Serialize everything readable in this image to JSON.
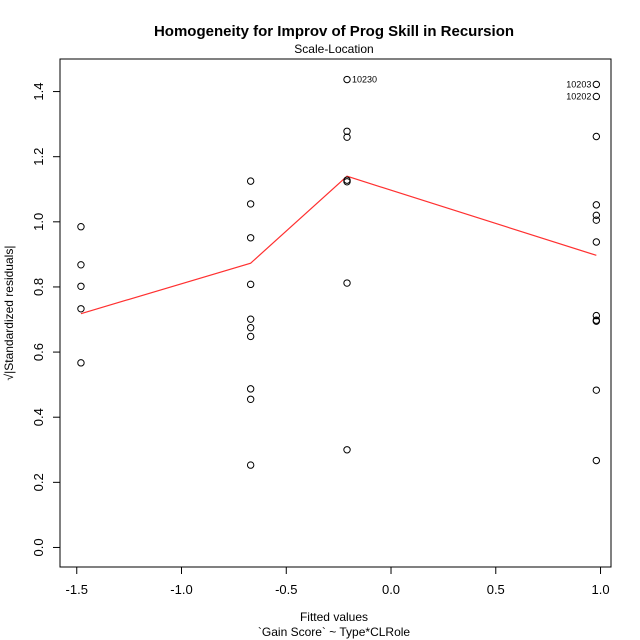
{
  "chart_data": {
    "type": "scatter",
    "title": "Homogeneity for Improv of Prog Skill in Recursion",
    "subtitle": "Scale-Location",
    "xlabel": "Fitted values",
    "xlabel2": "`Gain Score` ~ Type*CLRole",
    "ylabel": "√|Standardized residuals|",
    "xlim": [
      -1.58,
      1.05
    ],
    "ylim": [
      -0.06,
      1.5
    ],
    "xticks": [
      -1.5,
      -1.0,
      -0.5,
      0.0,
      0.5,
      1.0
    ],
    "xtick_labels": [
      "-1.5",
      "-1.0",
      "-0.5",
      "0.0",
      "0.5",
      "1.0"
    ],
    "yticks": [
      0.0,
      0.2,
      0.4,
      0.6,
      0.8,
      1.0,
      1.2,
      1.4
    ],
    "ytick_labels": [
      "0.0",
      "0.2",
      "0.4",
      "0.6",
      "0.8",
      "1.0",
      "1.2",
      "1.4"
    ],
    "grid": false,
    "points": [
      {
        "x": -1.48,
        "y": 0.985
      },
      {
        "x": -1.48,
        "y": 0.868
      },
      {
        "x": -1.48,
        "y": 0.802
      },
      {
        "x": -1.48,
        "y": 0.733
      },
      {
        "x": -1.48,
        "y": 0.567
      },
      {
        "x": -0.67,
        "y": 1.125
      },
      {
        "x": -0.67,
        "y": 1.055
      },
      {
        "x": -0.67,
        "y": 0.951
      },
      {
        "x": -0.67,
        "y": 0.808
      },
      {
        "x": -0.67,
        "y": 0.701
      },
      {
        "x": -0.67,
        "y": 0.675
      },
      {
        "x": -0.67,
        "y": 0.648
      },
      {
        "x": -0.67,
        "y": 0.487
      },
      {
        "x": -0.67,
        "y": 0.455
      },
      {
        "x": -0.67,
        "y": 0.253
      },
      {
        "x": -0.21,
        "y": 1.437,
        "label": "10230"
      },
      {
        "x": -0.21,
        "y": 1.278
      },
      {
        "x": -0.21,
        "y": 1.26
      },
      {
        "x": -0.21,
        "y": 1.128
      },
      {
        "x": -0.21,
        "y": 1.123
      },
      {
        "x": -0.21,
        "y": 0.812
      },
      {
        "x": -0.21,
        "y": 0.3
      },
      {
        "x": 0.98,
        "y": 1.422,
        "label": "10203"
      },
      {
        "x": 0.98,
        "y": 1.385,
        "label": "10202"
      },
      {
        "x": 0.98,
        "y": 1.262
      },
      {
        "x": 0.98,
        "y": 1.052
      },
      {
        "x": 0.98,
        "y": 1.02
      },
      {
        "x": 0.98,
        "y": 1.005
      },
      {
        "x": 0.98,
        "y": 0.938
      },
      {
        "x": 0.98,
        "y": 0.712
      },
      {
        "x": 0.98,
        "y": 0.698
      },
      {
        "x": 0.98,
        "y": 0.695
      },
      {
        "x": 0.98,
        "y": 0.483
      },
      {
        "x": 0.98,
        "y": 0.267
      }
    ],
    "smoother": {
      "x": [
        -1.48,
        -0.67,
        -0.21,
        0.98
      ],
      "y": [
        0.718,
        0.873,
        1.14,
        0.897
      ],
      "color": "#ff3030"
    }
  }
}
